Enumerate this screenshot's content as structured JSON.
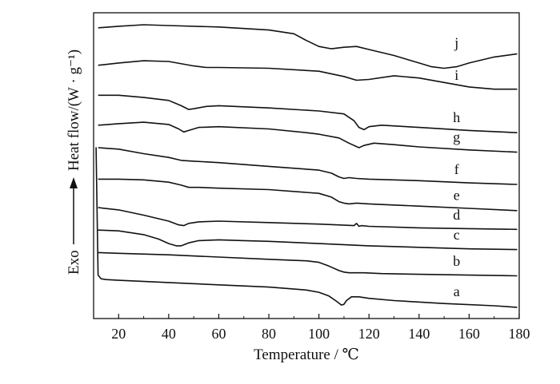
{
  "chart_data": {
    "type": "line",
    "xlabel": "Temperature / ℃",
    "ylabel": "Heat flow/(W · g⁻¹)",
    "y_direction_label": "Exo",
    "xlim": [
      10,
      180
    ],
    "xticks": [
      20,
      40,
      60,
      80,
      100,
      120,
      140,
      160,
      180
    ],
    "y_units": "offset heat flow (arbitrary, stacked)",
    "grid": false,
    "series": [
      {
        "name": "a",
        "x": [
          11,
          11.8,
          13,
          15,
          20,
          40,
          60,
          80,
          95,
          100,
          104,
          107,
          109,
          110,
          111,
          113,
          116,
          120,
          130,
          150,
          170,
          179
        ],
        "y": [
          9.4,
          0.9,
          0.65,
          0.6,
          0.55,
          0.4,
          0.25,
          0.1,
          -0.1,
          -0.25,
          -0.5,
          -0.85,
          -1.1,
          -1.05,
          -0.8,
          -0.55,
          -0.55,
          -0.65,
          -0.8,
          -1.0,
          -1.15,
          -1.25
        ]
      },
      {
        "name": "b",
        "x": [
          12,
          20,
          40,
          60,
          80,
          95,
          100,
          104,
          108,
          110,
          112,
          114,
          118,
          125,
          140,
          160,
          179
        ],
        "y": [
          2.4,
          2.35,
          2.25,
          2.1,
          1.95,
          1.85,
          1.75,
          1.5,
          1.2,
          1.1,
          1.05,
          1.05,
          1.05,
          1.0,
          0.95,
          0.9,
          0.85
        ]
      },
      {
        "name": "c",
        "x": [
          12,
          20,
          30,
          36,
          40,
          43,
          45,
          48,
          52,
          60,
          70,
          80,
          100,
          120,
          140,
          160,
          179
        ],
        "y": [
          3.9,
          3.85,
          3.6,
          3.3,
          3.0,
          2.85,
          2.85,
          3.05,
          3.2,
          3.25,
          3.2,
          3.15,
          3.0,
          2.85,
          2.75,
          2.65,
          2.6
        ]
      },
      {
        "name": "d",
        "x": [
          12,
          20,
          30,
          40,
          44,
          46,
          48,
          52,
          60,
          80,
          100,
          114,
          115,
          116,
          117,
          120,
          140,
          160,
          179
        ],
        "y": [
          5.4,
          5.25,
          4.9,
          4.5,
          4.25,
          4.2,
          4.35,
          4.45,
          4.5,
          4.4,
          4.3,
          4.2,
          4.35,
          4.15,
          4.2,
          4.15,
          4.05,
          4.0,
          3.95
        ]
      },
      {
        "name": "e",
        "x": [
          12,
          20,
          30,
          40,
          45,
          48,
          52,
          60,
          80,
          100,
          105,
          108,
          110,
          112,
          115,
          120,
          140,
          160,
          179
        ],
        "y": [
          7.3,
          7.3,
          7.25,
          7.1,
          6.9,
          6.75,
          6.75,
          6.7,
          6.6,
          6.35,
          6.1,
          5.8,
          5.7,
          5.65,
          5.7,
          5.65,
          5.5,
          5.35,
          5.2
        ]
      },
      {
        "name": "f",
        "x": [
          12,
          20,
          30,
          40,
          45,
          50,
          60,
          80,
          100,
          105,
          108,
          110,
          112,
          115,
          120,
          140,
          160,
          179
        ],
        "y": [
          9.4,
          9.3,
          9.0,
          8.75,
          8.55,
          8.5,
          8.4,
          8.15,
          7.9,
          7.7,
          7.45,
          7.35,
          7.4,
          7.35,
          7.3,
          7.2,
          7.05,
          6.95
        ]
      },
      {
        "name": "g",
        "x": [
          12,
          20,
          30,
          40,
          44,
          46,
          48,
          52,
          60,
          80,
          95,
          100,
          108,
          112,
          116,
          118,
          122,
          130,
          140,
          160,
          179
        ],
        "y": [
          10.9,
          11.0,
          11.1,
          10.95,
          10.65,
          10.45,
          10.55,
          10.75,
          10.8,
          10.65,
          10.4,
          10.3,
          10.05,
          9.7,
          9.4,
          9.55,
          9.7,
          9.6,
          9.45,
          9.25,
          9.1
        ]
      },
      {
        "name": "h",
        "x": [
          12,
          20,
          30,
          40,
          45,
          48,
          50,
          55,
          60,
          80,
          100,
          110,
          114,
          116,
          118,
          120,
          125,
          140,
          160,
          179
        ],
        "y": [
          12.9,
          12.9,
          12.75,
          12.55,
          12.2,
          11.95,
          12.0,
          12.15,
          12.2,
          12.05,
          11.85,
          11.65,
          11.2,
          10.75,
          10.6,
          10.8,
          10.9,
          10.75,
          10.55,
          10.4
        ]
      },
      {
        "name": "i",
        "x": [
          12,
          20,
          30,
          40,
          50,
          55,
          60,
          80,
          100,
          110,
          115,
          120,
          130,
          140,
          150,
          160,
          170,
          179
        ],
        "y": [
          14.9,
          15.05,
          15.2,
          15.15,
          14.85,
          14.75,
          14.75,
          14.7,
          14.5,
          14.15,
          13.9,
          13.95,
          14.2,
          14.05,
          13.75,
          13.45,
          13.3,
          13.3
        ]
      },
      {
        "name": "j",
        "x": [
          12,
          20,
          30,
          40,
          60,
          80,
          90,
          95,
          100,
          105,
          110,
          115,
          120,
          130,
          140,
          145,
          150,
          155,
          160,
          170,
          179
        ],
        "y": [
          17.4,
          17.5,
          17.6,
          17.55,
          17.45,
          17.25,
          17.0,
          16.55,
          16.15,
          16.0,
          16.1,
          16.15,
          15.95,
          15.55,
          15.05,
          14.8,
          14.7,
          14.8,
          15.05,
          15.45,
          15.65
        ]
      }
    ]
  }
}
